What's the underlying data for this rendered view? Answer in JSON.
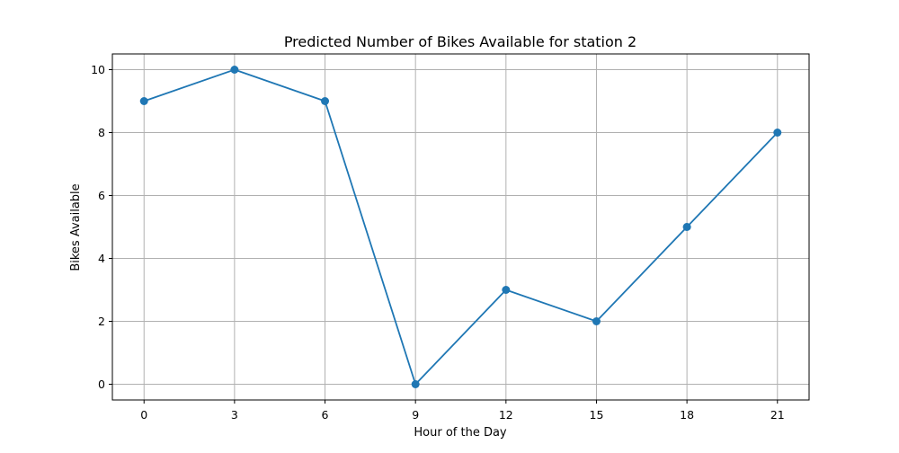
{
  "chart_data": {
    "type": "line",
    "title": "Predicted Number of Bikes Available for station 2",
    "xlabel": "Hour of the Day",
    "ylabel": "Bikes Available",
    "x": [
      0,
      3,
      6,
      9,
      12,
      15,
      18,
      21
    ],
    "series": [
      {
        "values": [
          9,
          10,
          9,
          0,
          3,
          2,
          5,
          8
        ],
        "color": "#1f77b4",
        "marker": "circle"
      }
    ],
    "xticks": [
      0,
      3,
      6,
      9,
      12,
      15,
      18,
      21
    ],
    "yticks": [
      0,
      2,
      4,
      6,
      8,
      10
    ],
    "xlim": [
      -1.05,
      22.05
    ],
    "ylim": [
      -0.5,
      10.5
    ],
    "grid": true,
    "grid_color": "#b0b0b0"
  }
}
